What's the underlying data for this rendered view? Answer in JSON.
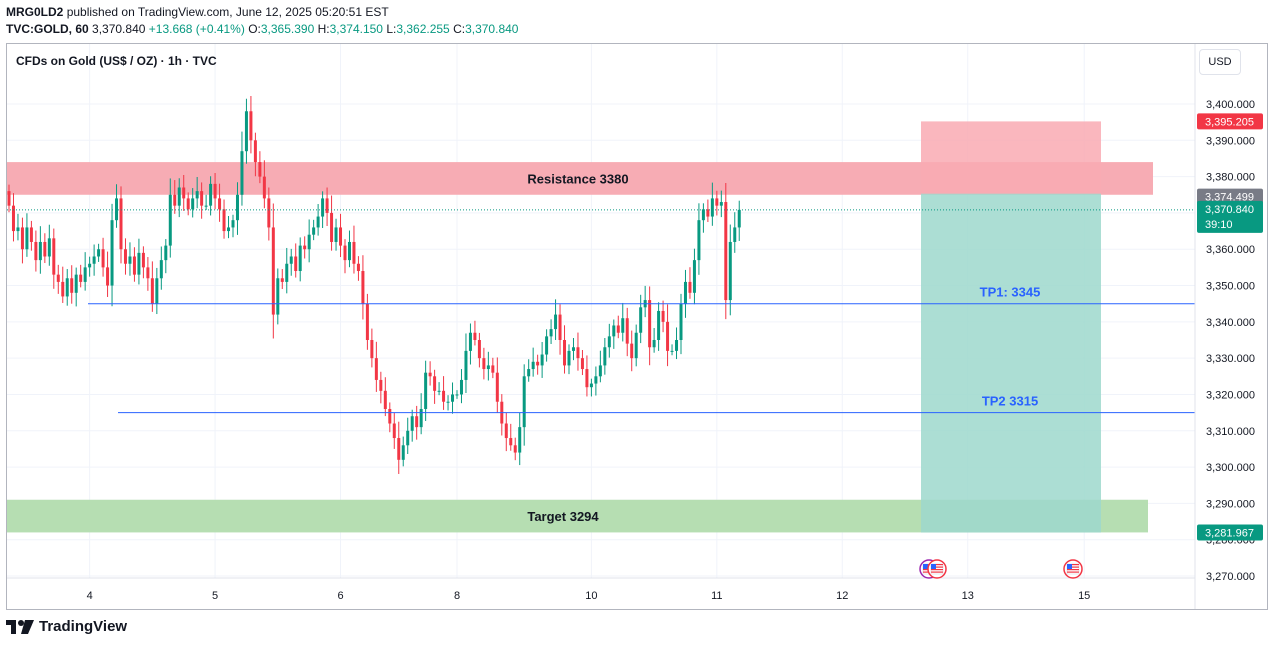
{
  "header": {
    "publisher": "MRG0LD2",
    "published_text": "published on TradingView.com, June 12, 2025 05:20:51 EST"
  },
  "quote": {
    "symbol": "TVC:GOLD, 60",
    "last": "3,370.840",
    "change": "+13.668 (+0.41%)",
    "o_label": "O:",
    "o": "3,365.390",
    "h_label": "H:",
    "h": "3,374.150",
    "l_label": "L:",
    "l": "3,362.255",
    "c_label": "C:",
    "c": "3,370.840"
  },
  "chart_title": "CFDs on Gold (US$ / OZ) · 1h · TVC",
  "currency_button": "USD",
  "footer": {
    "brand": "TradingView"
  },
  "colors": {
    "up": "#089981",
    "down": "#f23645",
    "resistance_zone": "#f7a8b0",
    "target_zone": "#b2dcae",
    "stop_zone": "#f9aab3",
    "profit_zone": "#9ed8cc",
    "tp_line": "#2962ff",
    "tp_text": "#2962ff"
  },
  "chart_data": {
    "type": "candlestick",
    "instrument": "CFDs on Gold (US$ / OZ)",
    "timeframe": "1h",
    "ylim": [
      3264,
      3420
    ],
    "y_ticks": [
      3270,
      3280,
      3290,
      3300,
      3310,
      3320,
      3330,
      3340,
      3350,
      3360,
      3370,
      3380,
      3390,
      3400
    ],
    "y_tick_labels": [
      "3,270.000",
      "3,280.000",
      "3,290.000",
      "3,300.000",
      "3,310.000",
      "3,320.000",
      "3,330.000",
      "3,340.000",
      "3,350.000",
      "3,360.000",
      "3,370.000",
      "3,380.000",
      "3,390.000",
      "3,400.000"
    ],
    "x_ticks": [
      {
        "label": "4",
        "bar": 18
      },
      {
        "label": "5",
        "bar": 46
      },
      {
        "label": "6",
        "bar": 74
      },
      {
        "label": "8",
        "bar": 100
      },
      {
        "label": "10",
        "bar": 130
      },
      {
        "label": "11",
        "bar": 158
      },
      {
        "label": "12",
        "bar": 186
      },
      {
        "label": "13",
        "bar": 214
      },
      {
        "label": "15",
        "bar": 240
      }
    ],
    "closes": [
      3372,
      3365,
      3366,
      3360,
      3366,
      3362,
      3357,
      3362,
      3358,
      3363,
      3353,
      3351,
      3347,
      3352,
      3348,
      3353,
      3351,
      3355,
      3356,
      3358,
      3360,
      3355,
      3350,
      3368,
      3374,
      3360,
      3356,
      3358,
      3353,
      3359,
      3355,
      3352,
      3345,
      3352,
      3357,
      3361,
      3375,
      3372,
      3377,
      3374,
      3371,
      3374,
      3376,
      3372,
      3372,
      3378,
      3374,
      3371,
      3365,
      3366,
      3368,
      3375,
      3387,
      3398,
      3390,
      3384,
      3380,
      3374,
      3366,
      3342,
      3352,
      3351,
      3356,
      3358,
      3354,
      3361,
      3360,
      3364,
      3366,
      3369,
      3374,
      3370,
      3362,
      3366,
      3361,
      3357,
      3362,
      3356,
      3354,
      3345,
      3335,
      3330,
      3324,
      3321,
      3316,
      3312,
      3308,
      3302,
      3306,
      3310,
      3314,
      3311,
      3316,
      3326,
      3325,
      3321,
      3321,
      3318,
      3318,
      3320,
      3320,
      3324,
      3332,
      3337,
      3335,
      3330,
      3327,
      3328,
      3326,
      3318,
      3312,
      3308,
      3306,
      3304,
      3311,
      3325,
      3327,
      3329,
      3328,
      3331,
      3336,
      3338,
      3342,
      3335,
      3328,
      3332,
      3333,
      3330,
      3327,
      3322,
      3323,
      3325,
      3328,
      3333,
      3336,
      3339,
      3337,
      3341,
      3334,
      3330,
      3337,
      3344,
      3346,
      3333,
      3335,
      3343,
      3340,
      3332,
      3332,
      3335,
      3345,
      3351,
      3348,
      3357,
      3368,
      3371,
      3369,
      3374,
      3372,
      3373,
      3346,
      3362,
      3366,
      3370.84
    ],
    "first_open": 3376,
    "resistance_zone": {
      "label": "Resistance 3380",
      "from": 3375,
      "to": 3384
    },
    "target_zone": {
      "label": "Target 3294",
      "from": 3282,
      "to": 3291
    },
    "tp1": {
      "label": "TP1: 3345",
      "value": 3345
    },
    "tp2": {
      "label": "TP2 3315",
      "value": 3315
    },
    "short_position": {
      "entry": 3375.3,
      "stop": 3395.205,
      "target": 3281.967
    },
    "price_labels": [
      {
        "text": "3,395.205",
        "value": 3395.205,
        "color": "#f23645"
      },
      {
        "text": "3,374.499",
        "value": 3374.499,
        "color": "#787b86"
      },
      {
        "text": "3,370.840",
        "value": 3370.84,
        "color": "#089981",
        "sub": "39:10"
      },
      {
        "text": "3,281.967",
        "value": 3281.967,
        "color": "#089981"
      }
    ],
    "current_price": 3370.84
  }
}
